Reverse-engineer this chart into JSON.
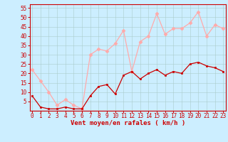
{
  "xlabel": "Vent moyen/en rafales ( km/h )",
  "bg_color": "#cceeff",
  "grid_color": "#aacccc",
  "mean_color": "#cc0000",
  "gust_color": "#ffaaaa",
  "x": [
    0,
    1,
    2,
    3,
    4,
    5,
    6,
    7,
    8,
    9,
    10,
    11,
    12,
    13,
    14,
    15,
    16,
    17,
    18,
    19,
    20,
    21,
    22,
    23
  ],
  "mean": [
    8,
    2,
    1,
    1,
    2,
    1,
    1,
    8,
    13,
    14,
    9,
    19,
    21,
    17,
    20,
    22,
    19,
    21,
    20,
    25,
    26,
    24,
    23,
    21
  ],
  "gust": [
    22,
    16,
    10,
    3,
    6,
    3,
    1,
    30,
    33,
    32,
    36,
    43,
    21,
    37,
    40,
    52,
    41,
    44,
    44,
    47,
    53,
    40,
    46,
    44
  ],
  "ylim": [
    0,
    57
  ],
  "yticks": [
    5,
    10,
    15,
    20,
    25,
    30,
    35,
    40,
    45,
    50,
    55
  ],
  "ytick_labels": [
    "5",
    "10",
    "15",
    "20",
    "25",
    "30",
    "35",
    "40",
    "45",
    "50",
    "55"
  ],
  "xlim": [
    -0.3,
    23.3
  ],
  "xticks": [
    0,
    1,
    2,
    3,
    4,
    5,
    6,
    7,
    8,
    9,
    10,
    11,
    12,
    13,
    14,
    15,
    16,
    17,
    18,
    19,
    20,
    21,
    22,
    23
  ],
  "tick_color": "#cc0000",
  "label_fontsize": 5.5,
  "xlabel_fontsize": 6.5
}
